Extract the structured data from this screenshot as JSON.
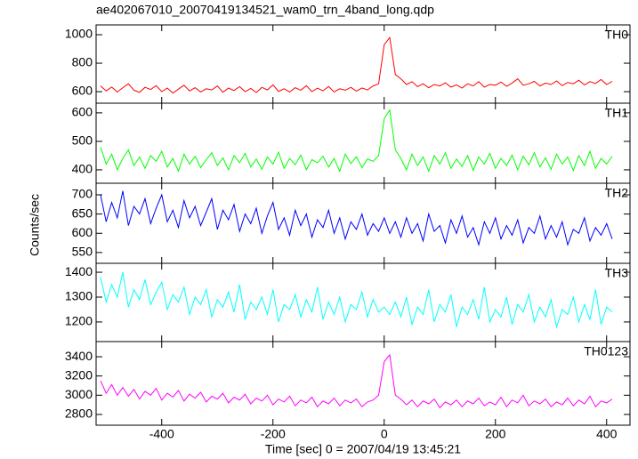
{
  "chart_data": {
    "type": "line",
    "title": "ae402067010_20070419134521_wam0_trn_4band_long.qdp",
    "xlabel": "Time [sec] 0 = 2007/04/19 13:45:21",
    "ylabel": "Counts/sec",
    "xlim": [
      -518,
      442
    ],
    "xticks": [
      -400,
      -200,
      0,
      200,
      400
    ],
    "x": [
      -510,
      -500,
      -490,
      -480,
      -470,
      -460,
      -450,
      -440,
      -430,
      -420,
      -410,
      -400,
      -390,
      -380,
      -370,
      -360,
      -350,
      -340,
      -330,
      -320,
      -310,
      -300,
      -290,
      -280,
      -270,
      -260,
      -250,
      -240,
      -230,
      -220,
      -210,
      -200,
      -190,
      -180,
      -170,
      -160,
      -150,
      -140,
      -130,
      -120,
      -110,
      -100,
      -90,
      -80,
      -70,
      -60,
      -50,
      -40,
      -30,
      -20,
      -10,
      0,
      10,
      20,
      30,
      40,
      50,
      60,
      70,
      80,
      90,
      100,
      110,
      120,
      130,
      140,
      150,
      160,
      170,
      180,
      190,
      200,
      210,
      220,
      230,
      240,
      250,
      260,
      270,
      280,
      290,
      300,
      310,
      320,
      330,
      340,
      350,
      360,
      370,
      380,
      390,
      400,
      410
    ],
    "panels": [
      {
        "name": "TH0",
        "color": "#ff0000",
        "ylim": [
          519,
          1069
        ],
        "yticks": [
          600,
          800,
          1000
        ],
        "values": [
          640,
          605,
          632,
          598,
          628,
          655,
          610,
          595,
          630,
          615,
          642,
          600,
          625,
          590,
          618,
          645,
          605,
          628,
          598,
          620,
          612,
          640,
          596,
          625,
          608,
          635,
          600,
          622,
          594,
          630,
          612,
          648,
          602,
          620,
          598,
          628,
          610,
          642,
          600,
          624,
          606,
          636,
          598,
          620,
          610,
          630,
          604,
          626,
          612,
          640,
          655,
          930,
          980,
          720,
          690,
          650,
          670,
          635,
          655,
          628,
          650,
          640,
          662,
          632,
          648,
          625,
          655,
          640,
          670,
          632,
          650,
          645,
          668,
          638,
          660,
          690,
          645,
          655,
          672,
          640,
          660,
          650,
          675,
          642,
          665,
          655,
          680,
          648,
          670,
          658,
          685,
          650,
          672
        ]
      },
      {
        "name": "TH1",
        "color": "#00ff00",
        "ylim": [
          353,
          634
        ],
        "yticks": [
          400,
          500,
          600
        ],
        "values": [
          480,
          420,
          455,
          400,
          440,
          470,
          415,
          445,
          405,
          450,
          430,
          465,
          410,
          440,
          395,
          455,
          420,
          448,
          408,
          435,
          460,
          415,
          442,
          400,
          450,
          425,
          458,
          410,
          438,
          402,
          445,
          420,
          462,
          405,
          440,
          418,
          452,
          400,
          436,
          425,
          448,
          410,
          440,
          395,
          455,
          422,
          446,
          408,
          438,
          430,
          450,
          580,
          610,
          470,
          440,
          400,
          455,
          415,
          445,
          395,
          450,
          420,
          460,
          405,
          438,
          412,
          450,
          398,
          445,
          420,
          458,
          405,
          440,
          415,
          452,
          400,
          448,
          418,
          460,
          410,
          442,
          402,
          455,
          420,
          445,
          398,
          450,
          415,
          465,
          405,
          440,
          420,
          448
        ]
      },
      {
        "name": "TH2",
        "color": "#0000ff",
        "ylim": [
          522,
          730
        ],
        "yticks": [
          550,
          600,
          650,
          700
        ],
        "values": [
          700,
          630,
          680,
          640,
          710,
          620,
          670,
          650,
          690,
          625,
          665,
          700,
          630,
          660,
          615,
          685,
          640,
          670,
          620,
          655,
          690,
          610,
          660,
          635,
          675,
          605,
          650,
          625,
          665,
          600,
          645,
          680,
          610,
          640,
          595,
          660,
          620,
          650,
          590,
          635,
          615,
          660,
          600,
          640,
          585,
          630,
          610,
          650,
          595,
          625,
          605,
          640,
          600,
          630,
          590,
          640,
          600,
          625,
          580,
          650,
          605,
          620,
          575,
          635,
          600,
          645,
          590,
          615,
          570,
          630,
          600,
          640,
          585,
          620,
          595,
          635,
          575,
          615,
          600,
          645,
          585,
          620,
          590,
          630,
          570,
          610,
          600,
          640,
          580,
          615,
          595,
          625,
          585
        ]
      },
      {
        "name": "TH3",
        "color": "#00ffff",
        "ylim": [
          1121,
          1436
        ],
        "yticks": [
          1200,
          1300,
          1400
        ],
        "values": [
          1380,
          1280,
          1350,
          1300,
          1400,
          1260,
          1330,
          1290,
          1370,
          1270,
          1320,
          1360,
          1250,
          1310,
          1280,
          1340,
          1230,
          1300,
          1270,
          1330,
          1220,
          1290,
          1260,
          1320,
          1240,
          1350,
          1210,
          1280,
          1250,
          1300,
          1230,
          1330,
          1200,
          1270,
          1250,
          1310,
          1220,
          1290,
          1240,
          1340,
          1210,
          1280,
          1230,
          1300,
          1200,
          1270,
          1250,
          1320,
          1220,
          1290,
          1240,
          1260,
          1230,
          1280,
          1220,
          1300,
          1190,
          1260,
          1230,
          1330,
          1200,
          1270,
          1240,
          1310,
          1180,
          1260,
          1230,
          1290,
          1210,
          1340,
          1200,
          1250,
          1220,
          1300,
          1190,
          1270,
          1240,
          1310,
          1200,
          1260,
          1220,
          1290,
          1180,
          1250,
          1230,
          1300,
          1200,
          1270,
          1210,
          1330,
          1190,
          1260,
          1240
        ]
      },
      {
        "name": "TH0123",
        "color": "#ff00ff",
        "ylim": [
          2688,
          3558
        ],
        "yticks": [
          2800,
          3000,
          3200,
          3400
        ],
        "values": [
          3150,
          3020,
          3110,
          3000,
          3080,
          2990,
          3060,
          2960,
          3040,
          3000,
          3070,
          2950,
          3020,
          2980,
          3050,
          2940,
          3010,
          2970,
          3030,
          2930,
          2990,
          2960,
          3020,
          2920,
          2980,
          2950,
          3010,
          2910,
          2970,
          2940,
          3000,
          2900,
          2960,
          2930,
          2990,
          2890,
          2950,
          2920,
          2980,
          2880,
          2940,
          2910,
          2970,
          2890,
          2950,
          2920,
          2960,
          2880,
          2930,
          2950,
          3000,
          3350,
          3420,
          3000,
          2960,
          2900,
          2950,
          2880,
          2940,
          2910,
          2960,
          2870,
          2930,
          2900,
          2950,
          2880,
          2940,
          2910,
          2970,
          2890,
          2930,
          2900,
          2980,
          2880,
          2950,
          2920,
          3000,
          2890,
          2940,
          2910,
          2960,
          2880,
          2930,
          2900,
          2970,
          2890,
          2950,
          2910,
          2990,
          2880,
          2940,
          2920,
          2960
        ]
      }
    ]
  }
}
